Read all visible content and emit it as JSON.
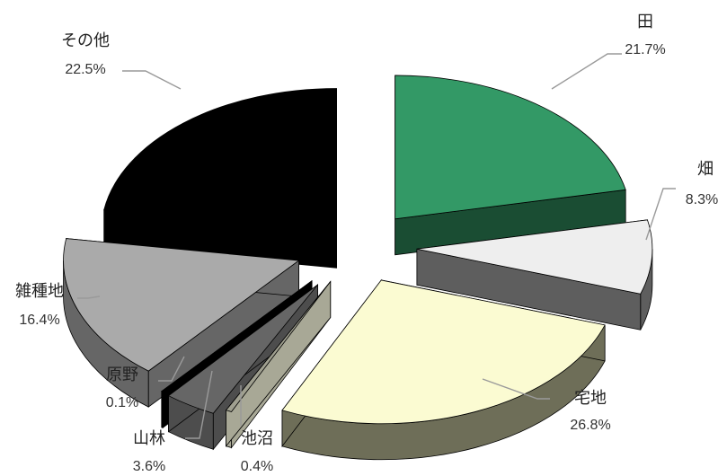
{
  "chart_data": {
    "type": "pie",
    "title": "",
    "unit": "%",
    "slices": [
      {
        "label": "田",
        "value": 21.7,
        "display": "21.7%",
        "top": "#339966",
        "side": "#1a4d33"
      },
      {
        "label": "畑",
        "value": 8.3,
        "display": "8.3%",
        "top": "#eeeeee",
        "side": "#5e5e5e"
      },
      {
        "label": "宅地",
        "value": 26.8,
        "display": "26.8%",
        "top": "#fbfbd2",
        "side": "#6e6e58"
      },
      {
        "label": "池沼",
        "value": 0.4,
        "display": "0.4%",
        "top": "#a0a090",
        "side": "#a8a896"
      },
      {
        "label": "山林",
        "value": 3.6,
        "display": "3.6%",
        "top": "#666666",
        "side": "#4d4d4d"
      },
      {
        "label": "原野",
        "value": 0.1,
        "display": "0.1%",
        "top": "#000000",
        "side": "#000000"
      },
      {
        "label": "雑種地",
        "value": 16.4,
        "display": "16.4%",
        "top": "#aaaaaa",
        "side": "#666666"
      },
      {
        "label": "その他",
        "value": 22.5,
        "display": "22.5%",
        "top": "#000000",
        "side": "#000000"
      }
    ]
  }
}
